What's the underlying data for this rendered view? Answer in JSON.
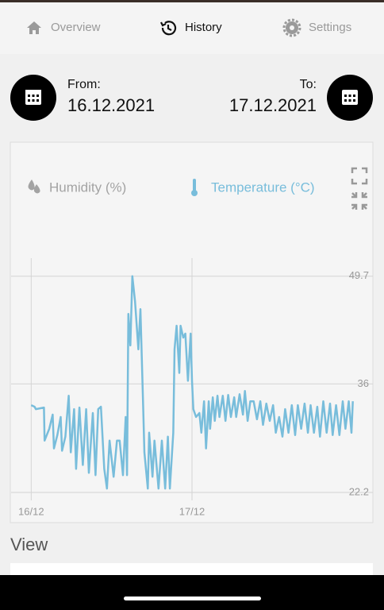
{
  "nav": {
    "items": [
      "Overview",
      "History",
      "Settings"
    ],
    "active": 1
  },
  "date_range": {
    "from_label": "From:",
    "from": "16.12.2021",
    "to_label": "To:",
    "to": "17.12.2021"
  },
  "chart_data": {
    "type": "line",
    "legend_inactive": [
      "Humidity (%)"
    ],
    "x": [
      0,
      0.5,
      0.7,
      1.9,
      2.0,
      2.7,
      3.2,
      3.4,
      3.9,
      4.4,
      4.6,
      5.1,
      5.6,
      5.9,
      6.4,
      6.7,
      7.2,
      7.7,
      8.2,
      8.6,
      9.2,
      9.6,
      10.0,
      10.4,
      10.9,
      11.3,
      11.7,
      12.3,
      12.8,
      13.2,
      13.7,
      14.1,
      14.3,
      14.5,
      14.8,
      15.1,
      15.5,
      16.0,
      16.3,
      16.7,
      16.9,
      17.4,
      17.6,
      18.1,
      18.4,
      19.0,
      19.5,
      20.0,
      20.4,
      20.7,
      21.2,
      21.4,
      21.7,
      22.1,
      22.3,
      22.7,
      23.0,
      23.4,
      23.8,
      24.0,
      24.2,
      24.6,
      25.1,
      25.4,
      25.8,
      26.1,
      26.5,
      26.7,
      27.1,
      27.4,
      27.8,
      28.1,
      28.6,
      29.0,
      29.4,
      29.8,
      30.3,
      30.6,
      31.1,
      31.6,
      31.9,
      32.3,
      32.7,
      33.2,
      33.7,
      34.2,
      34.6,
      35.1,
      35.6,
      36.1,
      36.5,
      37.0,
      37.5,
      37.9,
      38.4,
      38.9,
      39.4,
      39.8,
      40.3,
      40.8,
      41.3,
      41.7,
      42.2,
      42.7,
      43.1,
      43.6,
      44.1,
      44.6,
      45.0,
      45.5,
      46.0,
      46.5,
      46.9,
      47.4,
      47.8,
      48.0
    ],
    "series": [
      {
        "name": "Temperature (°C)",
        "color": "#78bddb",
        "values": [
          33.3,
          33.1,
          32.8,
          33.0,
          28.8,
          30.3,
          32.1,
          27.8,
          29.5,
          31.8,
          27.5,
          29.3,
          34.5,
          27.3,
          32.8,
          25.2,
          33.0,
          25.7,
          32.8,
          24.7,
          32.3,
          24.4,
          32.8,
          33.1,
          25.2,
          22.7,
          28.8,
          24.2,
          28.8,
          28.8,
          24.4,
          31.8,
          24.4,
          44.9,
          40.9,
          49.7,
          46.5,
          40.4,
          45.5,
          33.3,
          27.3,
          22.7,
          29.8,
          24.2,
          28.8,
          22.7,
          28.8,
          22.7,
          29.3,
          22.7,
          29.8,
          40.4,
          43.4,
          37.4,
          43.4,
          41.9,
          42.4,
          36.4,
          42.4,
          36.4,
          32.8,
          31.8,
          32.3,
          29.8,
          33.8,
          27.8,
          33.8,
          30.3,
          34.3,
          31.3,
          34.5,
          31.8,
          34.5,
          31.3,
          34.6,
          31.8,
          34.3,
          31.8,
          34.7,
          32.1,
          35.1,
          31.3,
          33.8,
          33.8,
          31.5,
          33.8,
          30.8,
          33.5,
          31.3,
          33.3,
          29.8,
          31.8,
          29.3,
          32.8,
          29.8,
          33.3,
          29.5,
          33.3,
          30.3,
          33.5,
          29.8,
          33.3,
          29.8,
          33.1,
          29.3,
          33.8,
          29.8,
          33.5,
          29.5,
          33.3,
          29.5,
          33.8,
          30.3,
          33.8,
          29.8,
          33.8
        ]
      }
    ],
    "xlim": [
      -3,
      51
    ],
    "xticks": [
      {
        "value": 0,
        "label": "16/12"
      },
      {
        "value": 24,
        "label": "17/12"
      }
    ],
    "ylim": [
      22.2,
      52
    ],
    "yticks": [
      22.2,
      36,
      49.7
    ],
    "grid": true
  },
  "view": {
    "title": "View"
  }
}
